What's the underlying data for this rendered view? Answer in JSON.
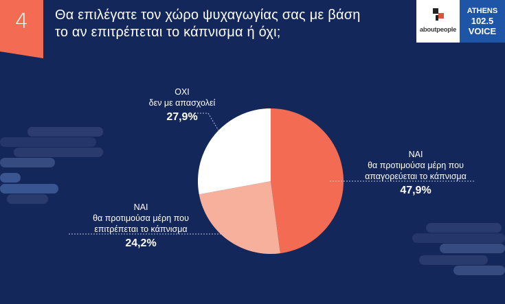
{
  "question": {
    "number": "4",
    "line1": "Θα επιλέγατε τον χώρο ψυχαγωγίας σας με βάση",
    "line2": "το αν επιτρέπεται το κάπνισμα ή όχι;"
  },
  "logos": {
    "aboutpeople": "aboutpeople",
    "athens_voice": [
      "ATHENS",
      "102.5",
      "VOICE"
    ]
  },
  "colors": {
    "background": "#14275a",
    "accent": "#f26b52",
    "slice_no_smoking": "#f26b52",
    "slice_smoking": "#f6b09b",
    "slice_indifferent": "#ffffff"
  },
  "chart_data": {
    "type": "pie",
    "title": "Θα επιλέγατε τον χώρο ψυχαγωγίας σας με βάση το αν επιτρέπεται το κάπνισμα ή όχι;",
    "slices": [
      {
        "key": "no_smoking",
        "label_main": "ΝΑΙ",
        "label_line1": "θα προτιμούσα μέρη που",
        "label_line2": "απαγορεύεται το κάπνισμα",
        "value": 47.9,
        "value_label": "47,9%"
      },
      {
        "key": "smoking",
        "label_main": "ΝΑΙ",
        "label_line1": "θα προτιμούσα μέρη που",
        "label_line2": "επιτρέπεται το κάπνισμα",
        "value": 24.2,
        "value_label": "24,2%"
      },
      {
        "key": "indifferent",
        "label_main": "ΟΧΙ",
        "label_line1": "δεν με απασχολεί",
        "label_line2": "",
        "value": 27.9,
        "value_label": "27,9%"
      }
    ]
  }
}
